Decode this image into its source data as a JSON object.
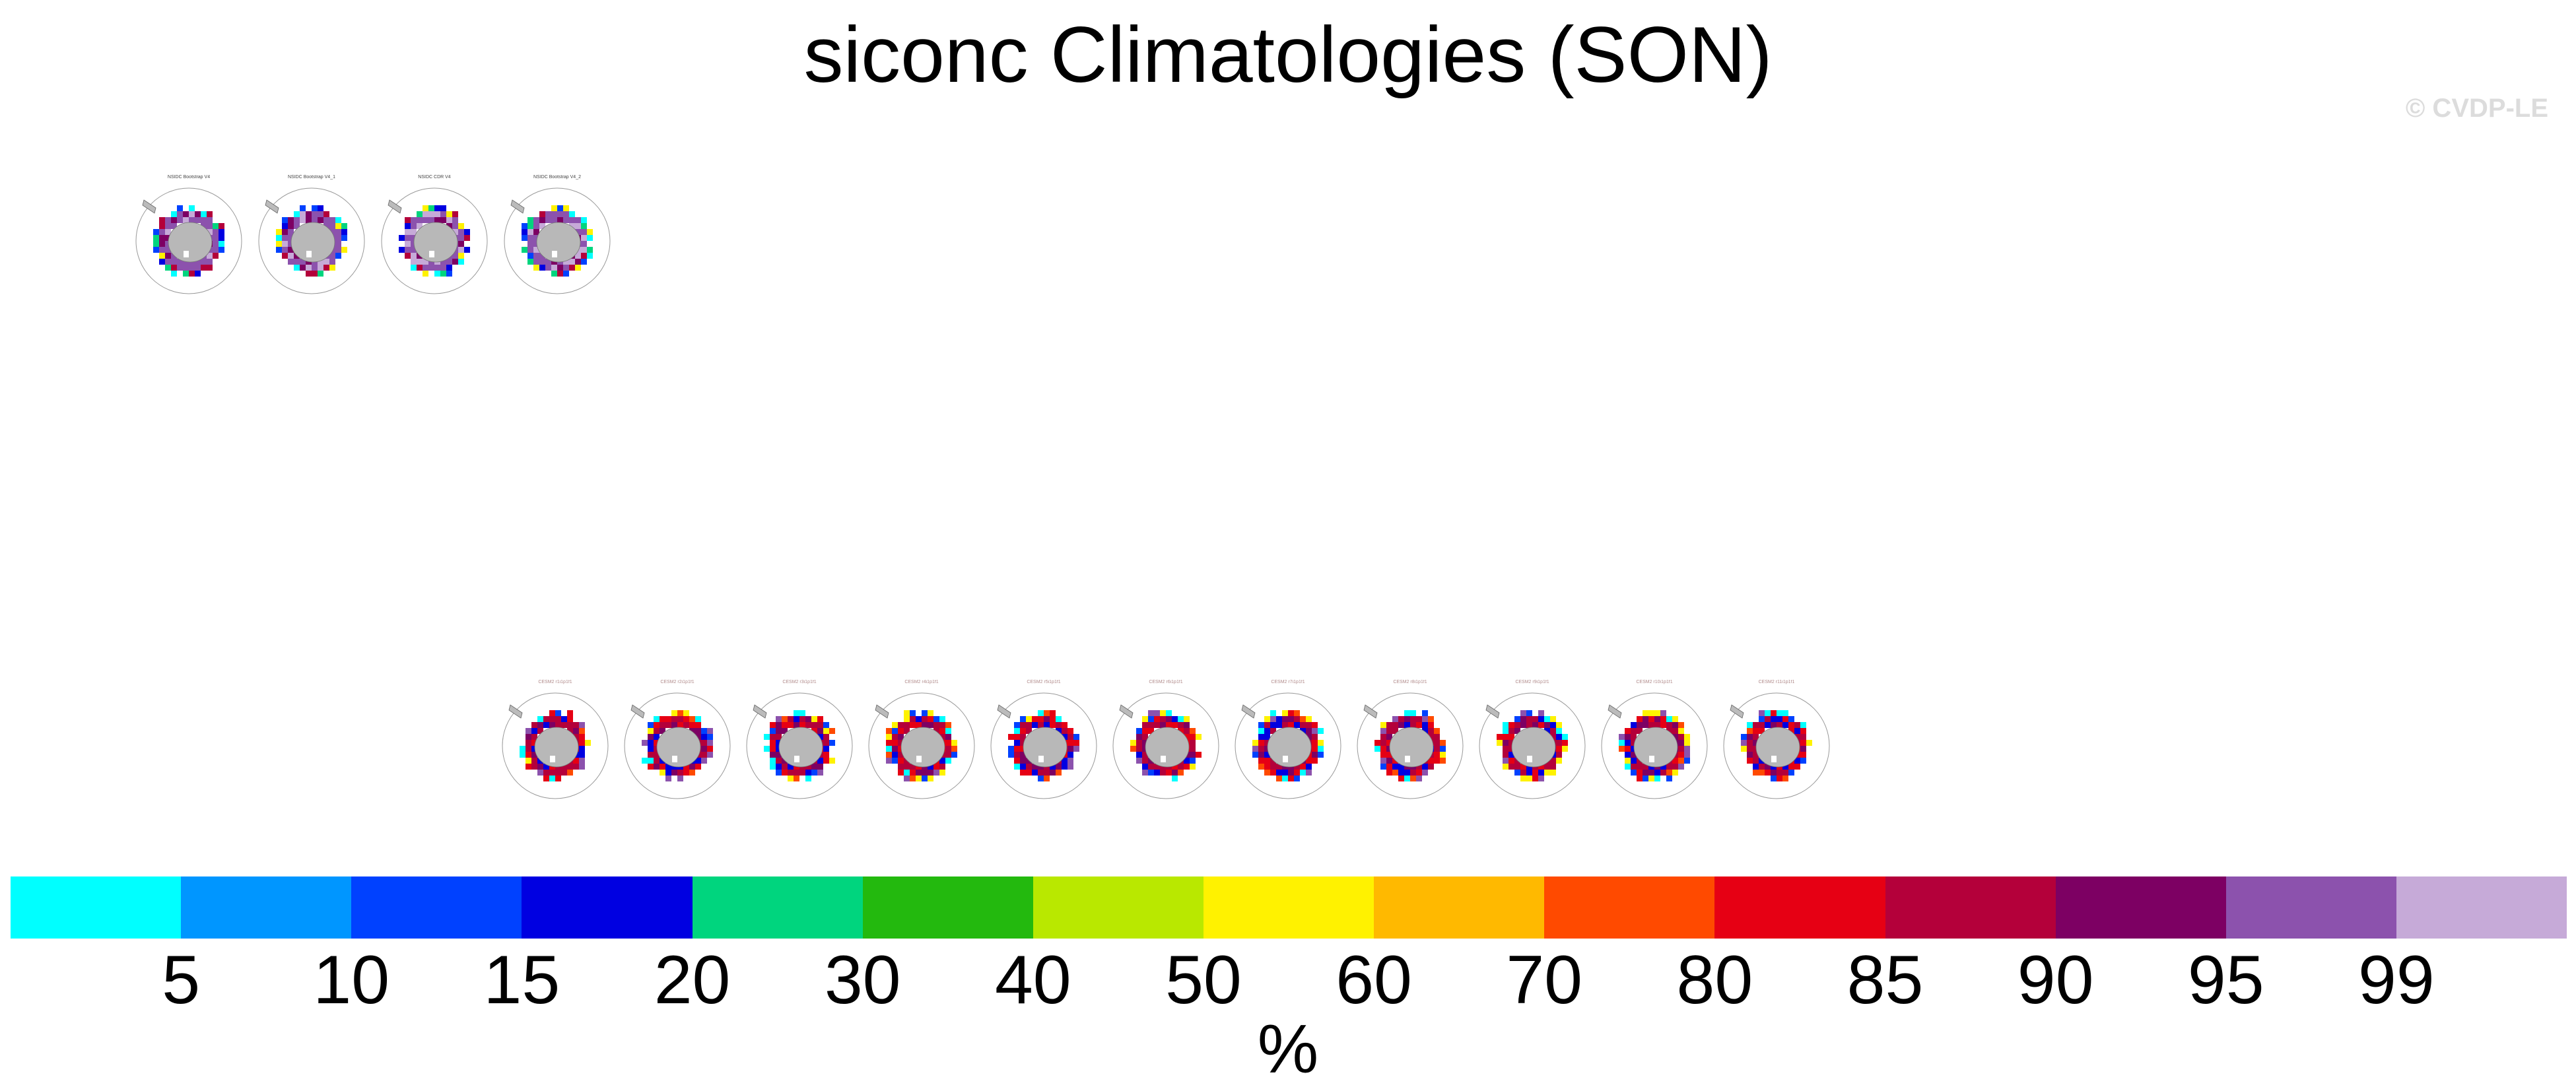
{
  "title": "siconc Climatologies (SON)",
  "watermark": "© CVDP-LE",
  "colorbar": {
    "units": "%",
    "tick_labels": [
      "5",
      "10",
      "15",
      "20",
      "30",
      "40",
      "50",
      "60",
      "70",
      "80",
      "85",
      "90",
      "95",
      "99"
    ],
    "colors": [
      "#00ffff",
      "#0096ff",
      "#0041ff",
      "#0000e1",
      "#00d57e",
      "#23b90e",
      "#b9e800",
      "#fff200",
      "#ffb900",
      "#ff4a00",
      "#e60014",
      "#b4003a",
      "#7d0063",
      "#8c52ad",
      "#c6aad8"
    ]
  },
  "panels": {
    "observations": [
      {
        "label": "NSIDC Bootstrap V4"
      },
      {
        "label": "NSIDC Bootstrap V4_1"
      },
      {
        "label": "NSIDC CDR V4"
      },
      {
        "label": "NSIDC Bootstrap V4_2"
      }
    ],
    "ensemble": [
      {
        "label": "CESM2 r1i1p1f1"
      },
      {
        "label": "CESM2 r2i1p1f1"
      },
      {
        "label": "CESM2 r3i1p1f1"
      },
      {
        "label": "CESM2 r4i1p1f1"
      },
      {
        "label": "CESM2 r5i1p1f1"
      },
      {
        "label": "CESM2 r6i1p1f1"
      },
      {
        "label": "CESM2 r7i1p1f1"
      },
      {
        "label": "CESM2 r8i1p1f1"
      },
      {
        "label": "CESM2 r9i1p1f1"
      },
      {
        "label": "CESM2 r10i1p1f1"
      },
      {
        "label": "CESM2 r11i1p1f1"
      }
    ]
  }
}
